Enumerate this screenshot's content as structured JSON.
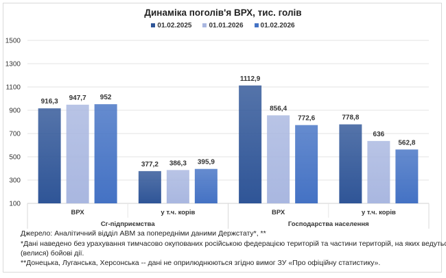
{
  "chart_data": {
    "type": "bar",
    "title": "Динаміка поголів'я ВРХ, тис. голів",
    "legend_position": "top",
    "grid": true,
    "ylim": [
      100,
      1500
    ],
    "yticks": [
      100,
      300,
      500,
      700,
      900,
      1100,
      1300,
      1500
    ],
    "groups": [
      {
        "label": "Сг-підприємства",
        "categories": [
          "ВРХ",
          "у т.ч. корів"
        ]
      },
      {
        "label": "Господарства  населення",
        "categories": [
          "ВРХ",
          "у т.ч. корів"
        ]
      }
    ],
    "series": [
      {
        "name": "01.02.2025",
        "color": "#2f5597",
        "values": [
          916.3,
          377.2,
          1112.9,
          778.8
        ],
        "labels": [
          "916,3",
          "377,2",
          "1112,9",
          "778,8"
        ]
      },
      {
        "name": "01.01.2026",
        "color": "#a9b7e0",
        "values": [
          947.7,
          386.3,
          856.4,
          636
        ],
        "labels": [
          "947,7",
          "386,3",
          "856,4",
          "636"
        ]
      },
      {
        "name": "01.02.2026",
        "color": "#4472c4",
        "values": [
          952,
          395.9,
          772.6,
          562.8
        ],
        "labels": [
          "952",
          "395,9",
          "772,6",
          "562,8"
        ]
      }
    ]
  },
  "footnotes": [
    "Джерело: Аналітичний відділ АВМ за попередніми даними Держстату*, **",
    "*Дані наведено без урахування тимчасово окупованих російською федерацією територій та частини територій, на яких ведуться",
    "(велися) бойові дії.",
    "**Донецька, Луганська, Херсонська -- дані  не оприлюднюються згідно вимог ЗУ «Про офіційну статистику»."
  ]
}
